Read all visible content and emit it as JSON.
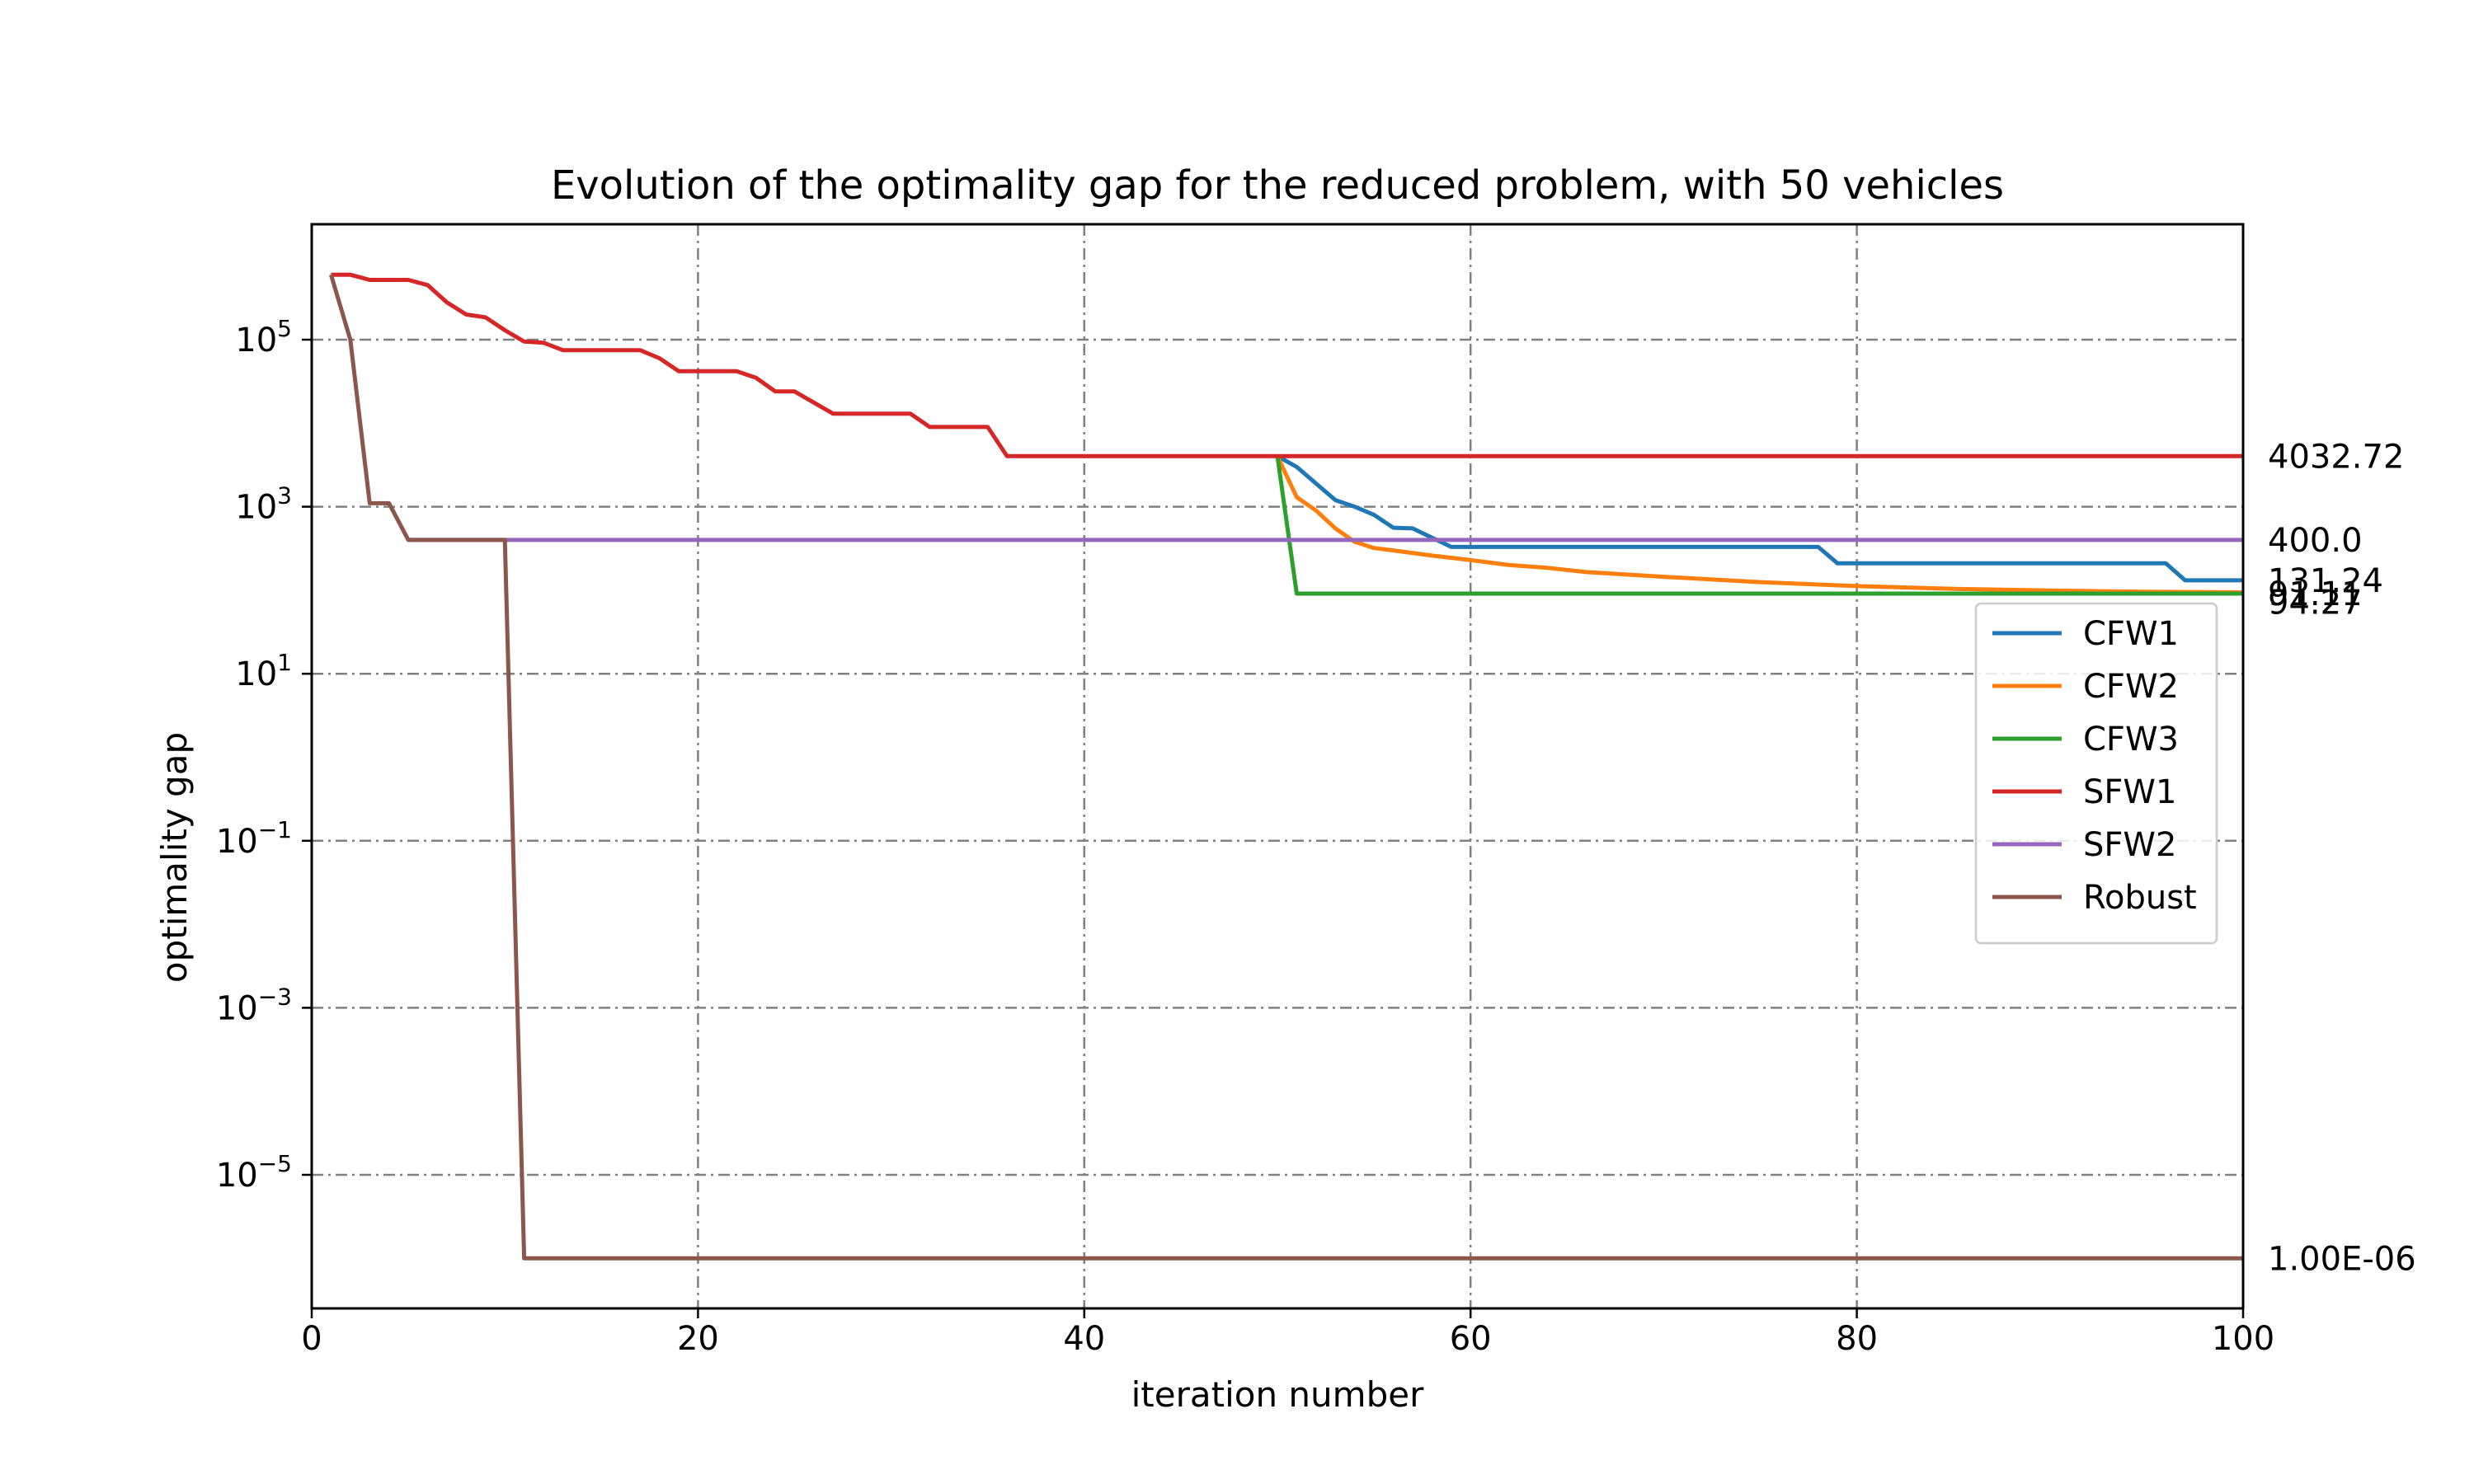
{
  "chart_data": {
    "type": "line",
    "title": "Evolution of the optimality gap for the reduced problem, with 50 vehicles",
    "xlabel": "iteration number",
    "ylabel": "optimality gap",
    "xlim": [
      0,
      100
    ],
    "ylim": [
      1e-07,
      3000000
    ],
    "yscale": "log",
    "grid": true,
    "legend_position": "right",
    "x_ticks": [
      0,
      20,
      40,
      60,
      80,
      100
    ],
    "x_tick_labels": [
      "0",
      "20",
      "40",
      "60",
      "80",
      "100"
    ],
    "y_ticks": [
      {
        "value": 100000,
        "base": "10",
        "exp": "5"
      },
      {
        "value": 1000,
        "base": "10",
        "exp": "3"
      },
      {
        "value": 10,
        "base": "10",
        "exp": "1"
      },
      {
        "value": 0.1,
        "base": "10",
        "exp": "−1"
      },
      {
        "value": 0.001,
        "base": "10",
        "exp": "−3"
      },
      {
        "value": 1e-05,
        "base": "10",
        "exp": "−5"
      }
    ],
    "series": [
      {
        "name": "CFW1",
        "color": "#1f77b4",
        "end_label": "131.24",
        "points": [
          [
            50,
            4032.72
          ],
          [
            51,
            3000
          ],
          [
            53,
            1200
          ],
          [
            54,
            1000
          ],
          [
            55,
            800
          ],
          [
            56,
            560
          ],
          [
            57,
            550
          ],
          [
            59,
            330
          ],
          [
            78,
            330
          ],
          [
            79,
            210
          ],
          [
            96,
            210
          ],
          [
            97,
            131.24
          ],
          [
            100,
            131.24
          ]
        ]
      },
      {
        "name": "CFW2",
        "color": "#ff7f0e",
        "end_label": "94.27",
        "points": [
          [
            50,
            4032.72
          ],
          [
            51,
            1300
          ],
          [
            52,
            900
          ],
          [
            53,
            550
          ],
          [
            54,
            380
          ],
          [
            55,
            320
          ],
          [
            56,
            300
          ],
          [
            58,
            260
          ],
          [
            60,
            230
          ],
          [
            62,
            200
          ],
          [
            64,
            185
          ],
          [
            66,
            165
          ],
          [
            70,
            145
          ],
          [
            75,
            125
          ],
          [
            80,
            112
          ],
          [
            85,
            104
          ],
          [
            90,
            99
          ],
          [
            95,
            96
          ],
          [
            100,
            94.27
          ]
        ]
      },
      {
        "name": "CFW3",
        "color": "#2ca02c",
        "end_label": "91.11",
        "points": [
          [
            50,
            4032.72
          ],
          [
            51,
            91.11
          ],
          [
            100,
            91.11
          ]
        ]
      },
      {
        "name": "SFW1",
        "color": "#d62728",
        "end_label": "4032.72",
        "points": [
          [
            1,
            600000
          ],
          [
            2,
            600000
          ],
          [
            3,
            520000
          ],
          [
            5,
            520000
          ],
          [
            6,
            450000
          ],
          [
            7,
            280000
          ],
          [
            8,
            200000
          ],
          [
            9,
            185000
          ],
          [
            10,
            130000
          ],
          [
            11,
            95000
          ],
          [
            12,
            92000
          ],
          [
            13,
            75000
          ],
          [
            17,
            75000
          ],
          [
            18,
            60000
          ],
          [
            19,
            42000
          ],
          [
            22,
            42000
          ],
          [
            23,
            35000
          ],
          [
            24,
            24000
          ],
          [
            25,
            24000
          ],
          [
            27,
            13000
          ],
          [
            31,
            13000
          ],
          [
            32,
            9000
          ],
          [
            35,
            9000
          ],
          [
            36,
            4032.72
          ],
          [
            100,
            4032.72
          ]
        ]
      },
      {
        "name": "SFW2",
        "color": "#9467bd",
        "end_label": "400.0",
        "points": [
          [
            5,
            400
          ],
          [
            100,
            400
          ]
        ]
      },
      {
        "name": "Robust",
        "color": "#8c564b",
        "end_label": "1.00E-06",
        "points": [
          [
            1,
            600000
          ],
          [
            2,
            100000
          ],
          [
            3,
            1100
          ],
          [
            4,
            1100
          ],
          [
            5,
            400
          ],
          [
            10,
            400
          ],
          [
            11,
            1e-06
          ],
          [
            100,
            1e-06
          ]
        ]
      }
    ]
  }
}
